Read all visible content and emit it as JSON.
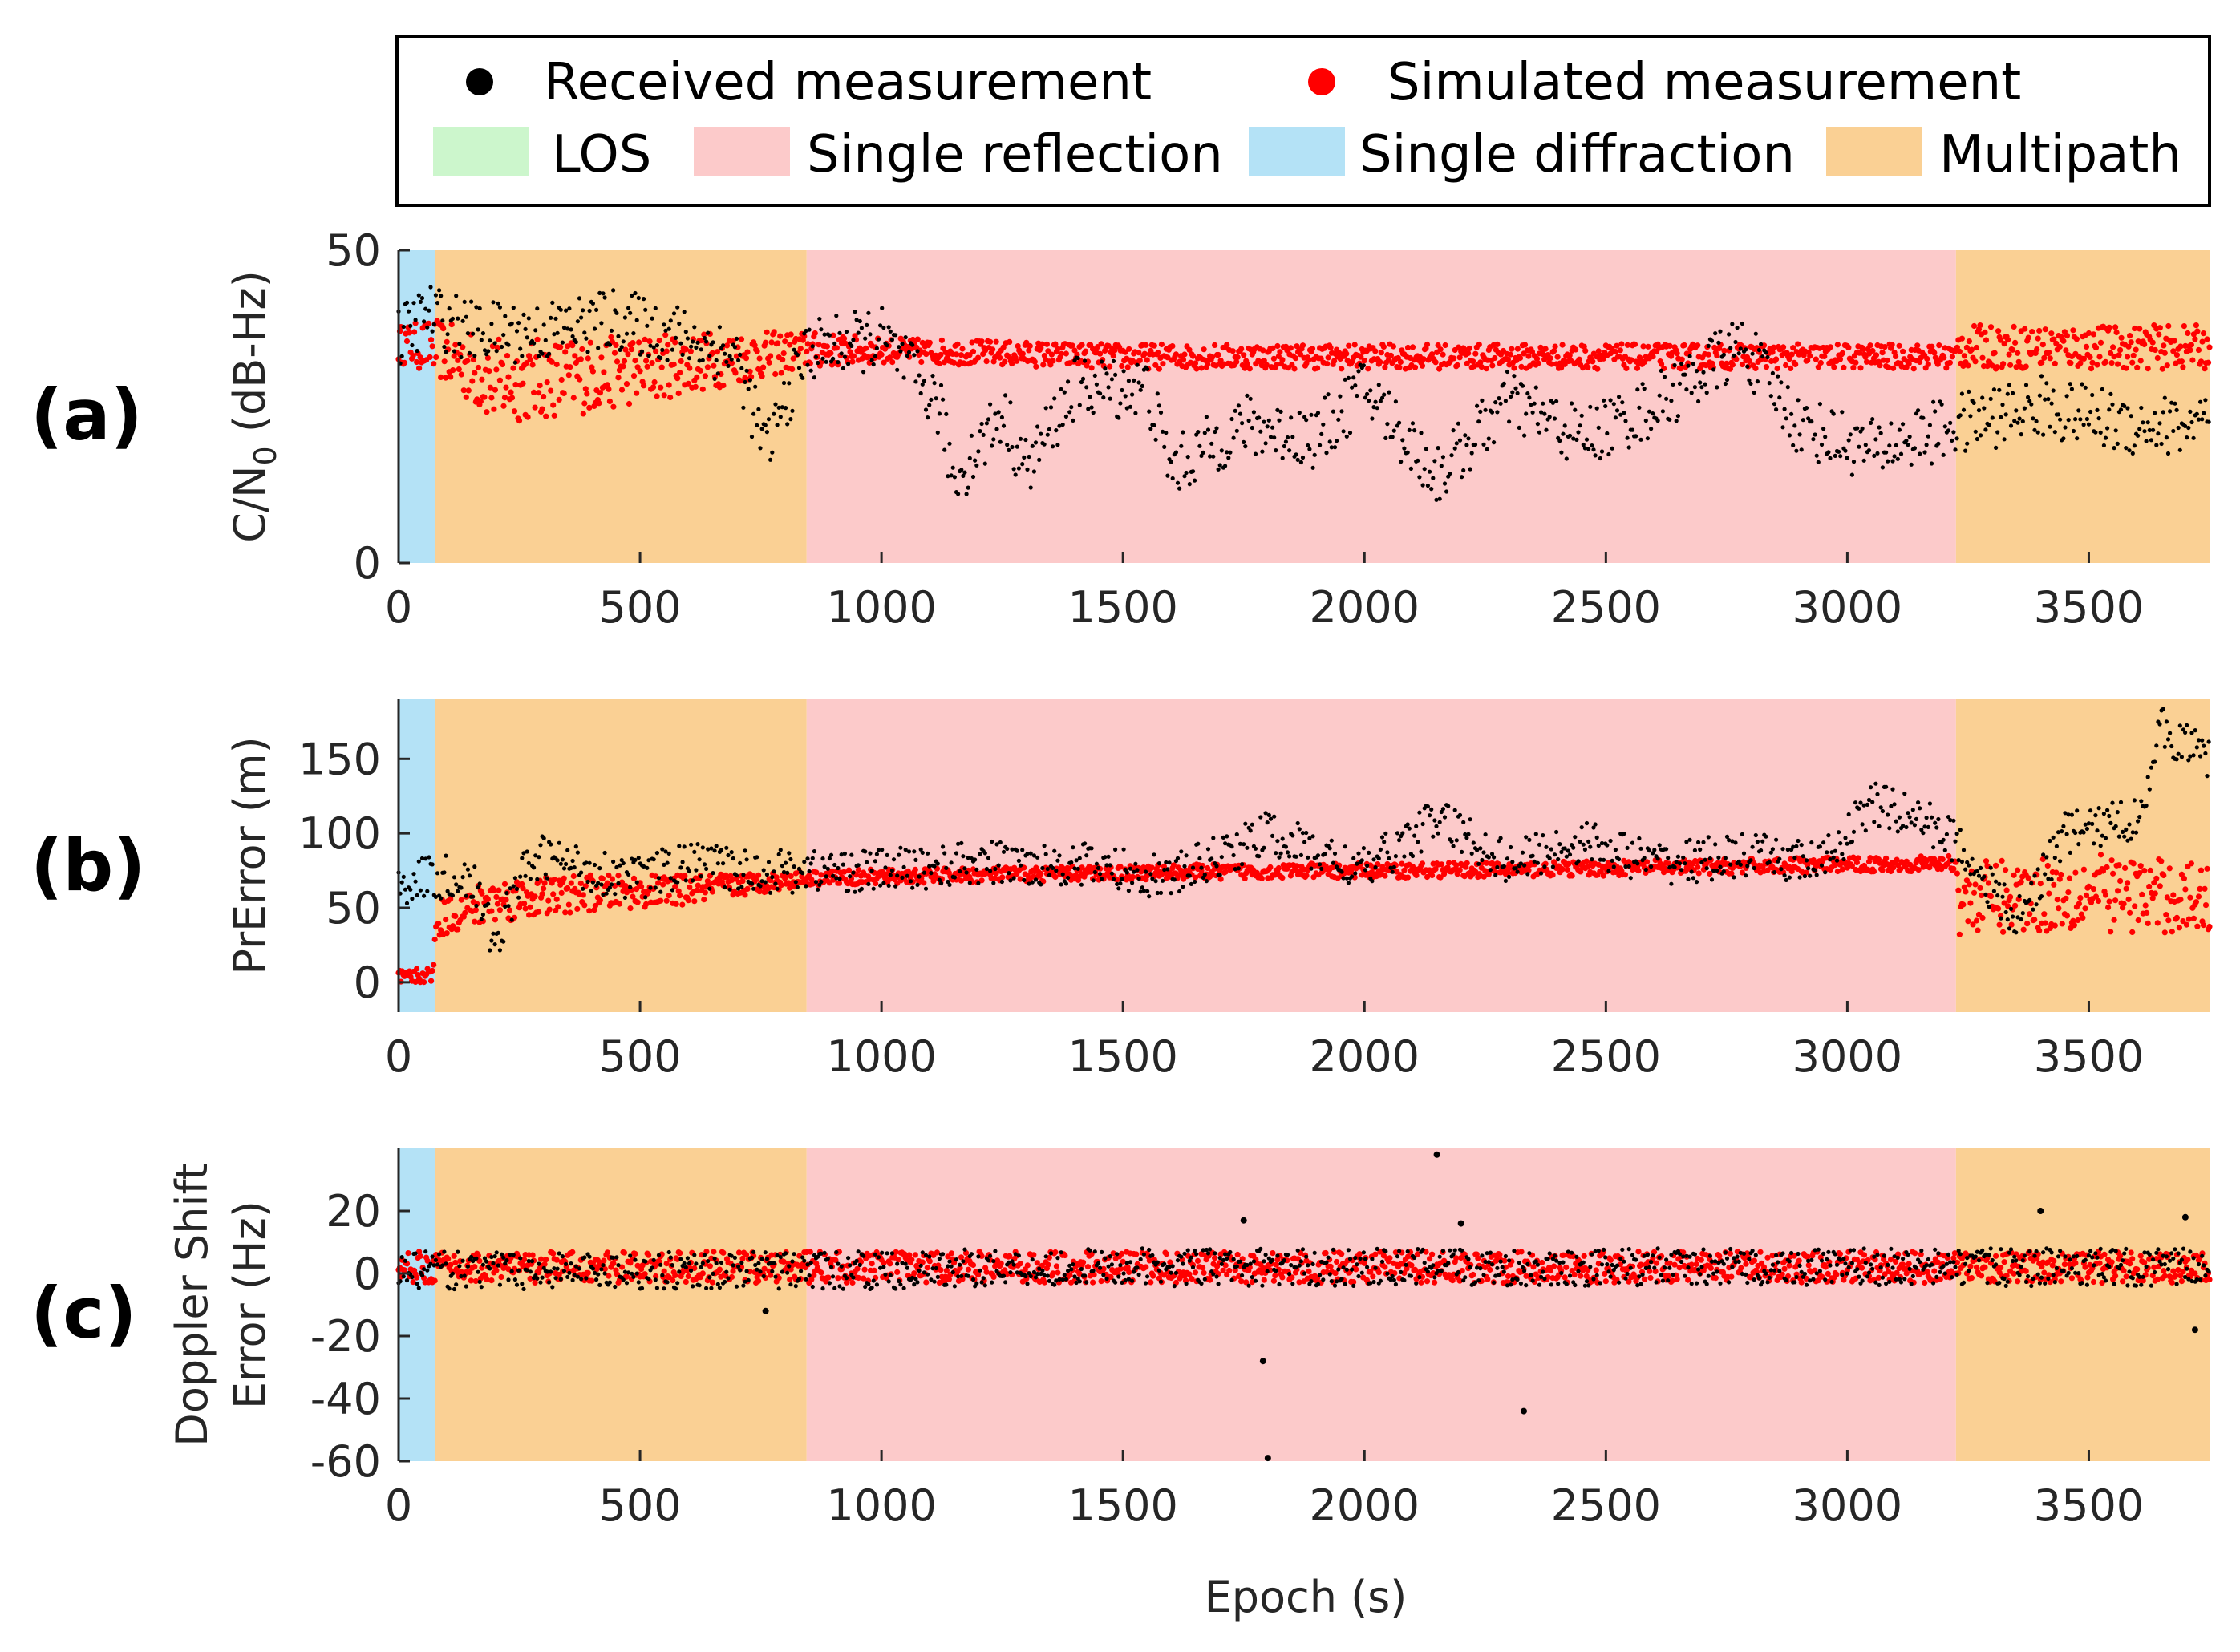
{
  "chart_data": [
    {
      "type": "scatter",
      "panel_label": "(a)",
      "ylabel": "C/N",
      "ylabel_sub": "0",
      "ylabel_suffix": " (dB-Hz)",
      "ylim": [
        0,
        50
      ],
      "yticks": [
        0,
        50
      ],
      "xlim": [
        0,
        3750
      ],
      "xticks": [
        0,
        500,
        1000,
        1500,
        2000,
        2500,
        3000,
        3500
      ],
      "regions": [
        {
          "category": "Single diffraction",
          "x0": 0,
          "x1": 75
        },
        {
          "category": "Multipath",
          "x0": 75,
          "x1": 845
        },
        {
          "category": "Single reflection",
          "x0": 845,
          "x1": 3225
        },
        {
          "category": "Multipath",
          "x0": 3225,
          "x1": 3750
        }
      ],
      "series": [
        {
          "name": "Simulated measurement",
          "color": "#ff0000",
          "x": [
            0,
            75,
            200,
            400,
            600,
            845,
            1000,
            1500,
            2000,
            2500,
            3000,
            3225,
            3230,
            3500,
            3750
          ],
          "values": [
            35,
            36,
            33,
            33,
            34,
            34,
            34,
            33,
            33,
            33,
            33,
            33,
            35,
            35,
            35
          ],
          "spread_low": [
            3,
            6,
            11,
            9,
            7,
            3,
            2,
            2,
            2,
            2,
            2,
            2,
            4,
            4,
            4
          ],
          "spread_high": [
            3,
            3,
            3,
            3,
            3,
            3,
            2,
            2,
            2,
            2,
            2,
            2,
            3,
            3,
            3
          ]
        },
        {
          "name": "Received measurement",
          "color": "#000000",
          "x": [
            0,
            60,
            150,
            300,
            450,
            600,
            700,
            760,
            845,
            1000,
            1120,
            1150,
            1250,
            1300,
            1400,
            1550,
            1600,
            1750,
            1900,
            2000,
            2150,
            2200,
            2300,
            2450,
            2600,
            2780,
            2900,
            3050,
            3225,
            3400,
            3600,
            3750
          ],
          "values": [
            36,
            40,
            37,
            37,
            39,
            36,
            33,
            18,
            34,
            36,
            25,
            13,
            24,
            15,
            28,
            28,
            15,
            22,
            20,
            28,
            14,
            18,
            26,
            20,
            25,
            35,
            22,
            18,
            22,
            25,
            22,
            22
          ],
          "spread": 5
        }
      ]
    },
    {
      "type": "scatter",
      "panel_label": "(b)",
      "ylabel": "PrError (m)",
      "ylim": [
        -20,
        190
      ],
      "yticks": [
        0,
        50,
        100,
        150
      ],
      "xlim": [
        0,
        3750
      ],
      "xticks": [
        0,
        500,
        1000,
        1500,
        2000,
        2500,
        3000,
        3500
      ],
      "regions": [
        {
          "category": "Single diffraction",
          "x0": 0,
          "x1": 75
        },
        {
          "category": "Multipath",
          "x0": 75,
          "x1": 845
        },
        {
          "category": "Single reflection",
          "x0": 845,
          "x1": 3225
        },
        {
          "category": "Multipath",
          "x0": 3225,
          "x1": 3750
        }
      ],
      "series": [
        {
          "name": "Simulated measurement",
          "color": "#ff0000",
          "x": [
            0,
            70,
            80,
            200,
            400,
            600,
            845,
            1200,
            1600,
            2000,
            2400,
            2800,
            3225,
            3230,
            3500,
            3750
          ],
          "values": [
            3,
            5,
            40,
            55,
            60,
            62,
            70,
            72,
            74,
            75,
            76,
            78,
            80,
            40,
            42,
            40
          ],
          "spread_low": [
            5,
            5,
            10,
            15,
            12,
            10,
            5,
            5,
            5,
            5,
            5,
            5,
            5,
            8,
            8,
            8
          ],
          "spread_high": [
            5,
            5,
            15,
            15,
            12,
            10,
            5,
            5,
            5,
            5,
            5,
            5,
            5,
            40,
            45,
            40
          ]
        },
        {
          "name": "Received measurement",
          "color": "#000000",
          "x": [
            0,
            50,
            150,
            200,
            250,
            300,
            400,
            500,
            600,
            700,
            845,
            1000,
            1200,
            1400,
            1600,
            1800,
            2000,
            2150,
            2300,
            2450,
            2600,
            2800,
            2950,
            3050,
            3150,
            3225,
            3350,
            3450,
            3600,
            3650,
            3750
          ],
          "values": [
            65,
            70,
            70,
            25,
            70,
            85,
            75,
            70,
            80,
            75,
            75,
            75,
            80,
            80,
            70,
            100,
            75,
            110,
            80,
            95,
            80,
            85,
            80,
            120,
            110,
            95,
            40,
            100,
            110,
            170,
            150
          ],
          "spread": 15
        }
      ]
    },
    {
      "type": "scatter",
      "panel_label": "(c)",
      "ylabel": "Doppler Shift",
      "ylabel2": "Error (Hz)",
      "ylim": [
        -60,
        40
      ],
      "yticks": [
        -60,
        -40,
        -20,
        0,
        20
      ],
      "xlim": [
        0,
        3750
      ],
      "xticks": [
        0,
        500,
        1000,
        1500,
        2000,
        2500,
        3000,
        3500
      ],
      "regions": [
        {
          "category": "Single diffraction",
          "x0": 0,
          "x1": 75
        },
        {
          "category": "Multipath",
          "x0": 75,
          "x1": 845
        },
        {
          "category": "Single reflection",
          "x0": 845,
          "x1": 3225
        },
        {
          "category": "Multipath",
          "x0": 3225,
          "x1": 3750
        }
      ],
      "series": [
        {
          "name": "Simulated measurement",
          "color": "#ff0000",
          "x": [
            0,
            3750
          ],
          "values": [
            2,
            2
          ],
          "spread_low": [
            5,
            5
          ],
          "spread_high": [
            5,
            5
          ]
        },
        {
          "name": "Received measurement",
          "color": "#000000",
          "x": [
            0,
            1100,
            1200,
            2300,
            2400,
            3225,
            3750
          ],
          "values": [
            1,
            1,
            2,
            2,
            2,
            2,
            2
          ],
          "spread": 6,
          "outliers": [
            [
              2150,
              38
            ],
            [
              1790,
              -28
            ],
            [
              2330,
              -44
            ],
            [
              1800,
              -59
            ],
            [
              760,
              -12
            ],
            [
              3400,
              20
            ],
            [
              3700,
              18
            ],
            [
              3720,
              -18
            ],
            [
              1750,
              17
            ],
            [
              2200,
              16
            ]
          ]
        }
      ]
    }
  ],
  "legend": {
    "entries": [
      {
        "name": "Received measurement",
        "color": "#000000"
      },
      {
        "name": "Simulated measurement",
        "color": "#ff0000"
      },
      {
        "name": "LOS",
        "color": "#ccf6cc"
      },
      {
        "name": "Single reflection",
        "color": "#fccaca"
      },
      {
        "name": "Single diffraction",
        "color": "#b4e2f6"
      },
      {
        "name": "Multipath",
        "color": "#fad094"
      }
    ]
  },
  "xlabel": "Epoch (s)",
  "colors": {
    "single_diffraction": "#b4e2f6",
    "multipath": "#fad094",
    "single_reflection": "#fccaca",
    "received": "#000000",
    "simulated": "#ff0000"
  }
}
